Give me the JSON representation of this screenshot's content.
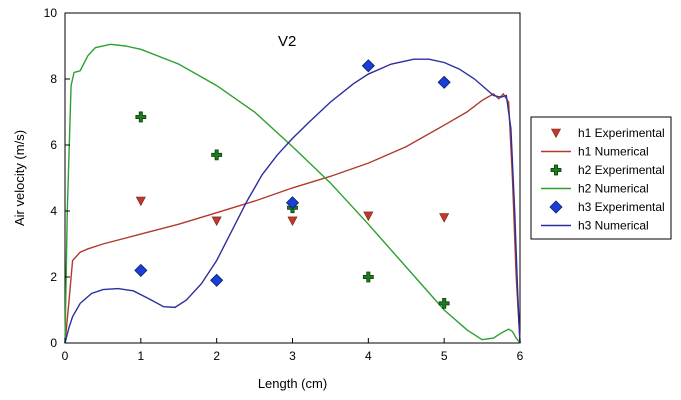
{
  "chart_data": {
    "type": "scatter",
    "title": "V2",
    "xlabel": "Length (cm)",
    "ylabel": "Air velocity (m/s)",
    "xlim": [
      0,
      6
    ],
    "ylim": [
      0,
      10
    ],
    "xticks": [
      0,
      1,
      2,
      3,
      4,
      5,
      6
    ],
    "yticks": [
      0,
      2,
      4,
      6,
      8,
      10
    ],
    "grid": false,
    "legend_position": "right",
    "series": [
      {
        "name": "h1 Experimental",
        "kind": "scatter",
        "marker": "triangle-down",
        "color": "#c0392b",
        "x": [
          1,
          2,
          3,
          4,
          5
        ],
        "y": [
          4.3,
          3.7,
          3.7,
          3.85,
          3.8
        ]
      },
      {
        "name": "h1 Numerical",
        "kind": "line",
        "color": "#b03a2e",
        "x": [
          0,
          0.05,
          0.1,
          0.2,
          0.3,
          0.5,
          1,
          1.5,
          2,
          2.5,
          3,
          3.5,
          4,
          4.5,
          5,
          5.3,
          5.5,
          5.65,
          5.72,
          5.78,
          5.85,
          5.9,
          5.95,
          6
        ],
        "y": [
          0,
          1.2,
          2.5,
          2.75,
          2.85,
          3.0,
          3.3,
          3.6,
          3.95,
          4.3,
          4.7,
          5.05,
          5.45,
          5.95,
          6.6,
          7.0,
          7.35,
          7.55,
          7.4,
          7.55,
          7.3,
          5.0,
          2.0,
          0
        ]
      },
      {
        "name": "h2 Experimental",
        "kind": "scatter",
        "marker": "plus",
        "color": "#1e7b1e",
        "x": [
          1,
          2,
          3,
          4,
          5
        ],
        "y": [
          6.85,
          5.7,
          4.1,
          2.0,
          1.2
        ]
      },
      {
        "name": "h2 Numerical",
        "kind": "line",
        "color": "#2ea02e",
        "x": [
          0,
          0.03,
          0.08,
          0.12,
          0.2,
          0.3,
          0.4,
          0.6,
          0.8,
          1,
          1.5,
          2,
          2.5,
          3,
          3.5,
          4,
          4.5,
          5,
          5.3,
          5.5,
          5.65,
          5.75,
          5.85,
          5.9,
          5.95,
          6
        ],
        "y": [
          0,
          4.0,
          7.8,
          8.2,
          8.25,
          8.7,
          8.95,
          9.05,
          9.0,
          8.9,
          8.45,
          7.8,
          7.0,
          5.95,
          4.85,
          3.6,
          2.3,
          1.0,
          0.4,
          0.1,
          0.15,
          0.3,
          0.42,
          0.35,
          0.15,
          0
        ]
      },
      {
        "name": "h3 Experimental",
        "kind": "scatter",
        "marker": "diamond",
        "color": "#1a3fd6",
        "x": [
          1,
          2,
          3,
          4,
          5
        ],
        "y": [
          2.2,
          1.9,
          4.25,
          8.4,
          7.9
        ]
      },
      {
        "name": "h3 Numerical",
        "kind": "line",
        "color": "#2b2f9e",
        "x": [
          0,
          0.05,
          0.1,
          0.2,
          0.35,
          0.5,
          0.7,
          0.9,
          1.1,
          1.3,
          1.45,
          1.6,
          1.8,
          2,
          2.2,
          2.4,
          2.6,
          2.8,
          3,
          3.2,
          3.5,
          3.8,
          4,
          4.3,
          4.6,
          4.8,
          5,
          5.2,
          5.4,
          5.55,
          5.65,
          5.75,
          5.82,
          5.88,
          5.93,
          5.97,
          6
        ],
        "y": [
          0,
          0.45,
          0.8,
          1.2,
          1.5,
          1.62,
          1.65,
          1.58,
          1.35,
          1.1,
          1.08,
          1.3,
          1.8,
          2.5,
          3.4,
          4.3,
          5.1,
          5.7,
          6.2,
          6.65,
          7.3,
          7.85,
          8.15,
          8.45,
          8.6,
          8.6,
          8.5,
          8.3,
          8.0,
          7.7,
          7.5,
          7.45,
          7.5,
          6.5,
          4.0,
          1.5,
          0
        ]
      }
    ]
  }
}
